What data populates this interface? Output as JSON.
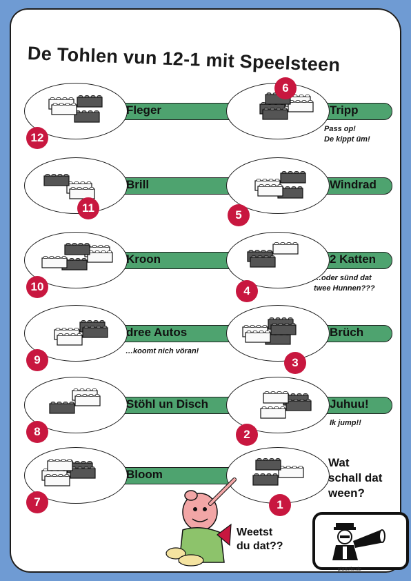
{
  "title": "De Tohlen vun 12-1 mit Speelsteen",
  "rows": [
    {
      "left_label": "Fleger",
      "left_num": "12",
      "right_label": "Tripp",
      "right_num": "6",
      "right_note": [
        "Pass op!",
        "De kippt üm!"
      ],
      "left_note": []
    },
    {
      "left_label": "Brill",
      "left_num": "11",
      "right_label": "Windrad",
      "right_num": "5",
      "right_note": [],
      "left_note": []
    },
    {
      "left_label": "Kroon",
      "left_num": "10",
      "right_label": "2 Katten",
      "right_num": "4",
      "right_note": [
        "…oder sünd dat",
        "twee Hunnen???"
      ],
      "left_note": []
    },
    {
      "left_label": "dree Autos",
      "left_num": "9",
      "right_label": "Brüch",
      "right_num": "3",
      "right_note": [],
      "left_note": [
        "…koomt nich vöran!"
      ]
    },
    {
      "left_label": "Stöhl un Disch",
      "left_num": "8",
      "right_label": "Juhuu!",
      "right_num": "2",
      "right_note": [
        "Ik jump!!"
      ],
      "left_note": []
    },
    {
      "left_label": "Bloom",
      "left_num": "7",
      "right_label": "",
      "right_num": "1",
      "right_note": [],
      "left_note": []
    }
  ],
  "question": [
    "Wat",
    "schall dat",
    "ween?"
  ],
  "weetst": [
    "Weetst",
    "du dat??"
  ],
  "footer": "plattolio.de",
  "colors": {
    "bar": "#4ea36f",
    "badge": "#c8173f",
    "background": "#6f9bd3"
  }
}
